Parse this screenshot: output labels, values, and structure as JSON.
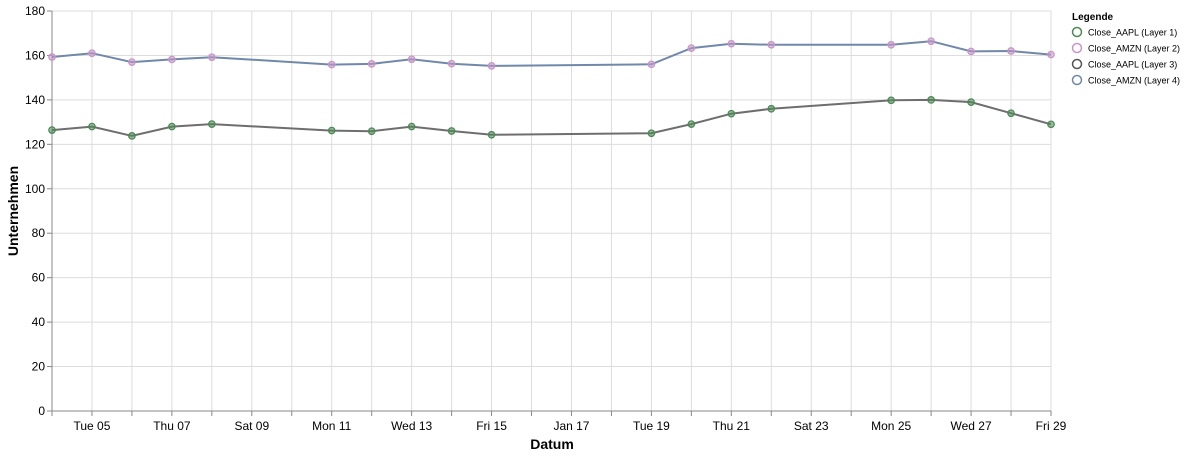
{
  "chart_data": {
    "type": "line",
    "xlabel": "Datum",
    "ylabel": "Unternehmen",
    "ylim": [
      0,
      180
    ],
    "yticks": [
      0,
      20,
      40,
      60,
      80,
      100,
      120,
      140,
      160,
      180
    ],
    "xlim": [
      "2024-01-04",
      "2024-01-29"
    ],
    "xticks": [
      {
        "date": "2024-01-05",
        "label": "Tue 05"
      },
      {
        "date": "2024-01-07",
        "label": "Thu 07"
      },
      {
        "date": "2024-01-09",
        "label": "Sat 09"
      },
      {
        "date": "2024-01-11",
        "label": "Mon 11"
      },
      {
        "date": "2024-01-13",
        "label": "Wed 13"
      },
      {
        "date": "2024-01-15",
        "label": "Fri 15"
      },
      {
        "date": "2024-01-17",
        "label": "Jan 17"
      },
      {
        "date": "2024-01-19",
        "label": "Tue 19"
      },
      {
        "date": "2024-01-21",
        "label": "Thu 21"
      },
      {
        "date": "2024-01-23",
        "label": "Sat 23"
      },
      {
        "date": "2024-01-25",
        "label": "Mon 25"
      },
      {
        "date": "2024-01-27",
        "label": "Wed 27"
      },
      {
        "date": "2024-01-29",
        "label": "Fri 29"
      }
    ],
    "grid": true,
    "legend": {
      "title": "Legende",
      "placement": "right",
      "entries": [
        {
          "label": "Close_AAPL (Layer 1)",
          "color": "#4c8a55"
        },
        {
          "label": "Close_AMZN (Layer 2)",
          "color": "#c896c8"
        },
        {
          "label": "Close_AAPL (Layer 3)",
          "color": "#555555"
        },
        {
          "label": "Close_AMZN (Layer 4)",
          "color": "#7088aa"
        }
      ]
    },
    "x": [
      "2024-01-04",
      "2024-01-05",
      "2024-01-06",
      "2024-01-07",
      "2024-01-08",
      "2024-01-11",
      "2024-01-12",
      "2024-01-13",
      "2024-01-14",
      "2024-01-15",
      "2024-01-19",
      "2024-01-20",
      "2024-01-21",
      "2024-01-22",
      "2024-01-25",
      "2024-01-26",
      "2024-01-27",
      "2024-01-28",
      "2024-01-29"
    ],
    "series": [
      {
        "name": "Close_AAPL (Layer 3)",
        "role": "line",
        "color": "#6e6e6e",
        "values": [
          126.4,
          128.0,
          123.8,
          128.0,
          129.1,
          126.2,
          125.9,
          128.0,
          126.0,
          124.3,
          125.0,
          129.1,
          133.8,
          136.0,
          139.8,
          140.0,
          139.0,
          134.0,
          129.0
        ]
      },
      {
        "name": "Close_AMZN (Layer 4)",
        "role": "line",
        "color": "#7088aa",
        "values": [
          159.3,
          161.0,
          157.0,
          158.2,
          159.2,
          155.9,
          156.2,
          158.3,
          156.3,
          155.3,
          156.0,
          163.3,
          165.3,
          164.8,
          164.8,
          166.4,
          161.8,
          162.0,
          160.4
        ]
      },
      {
        "name": "Close_AAPL (Layer 1)",
        "role": "points",
        "color": "#4c8a55",
        "values": [
          126.4,
          128.0,
          123.8,
          128.0,
          129.1,
          126.2,
          125.9,
          128.0,
          126.0,
          124.3,
          125.0,
          129.1,
          133.8,
          136.0,
          139.8,
          140.0,
          139.0,
          134.0,
          129.0
        ]
      },
      {
        "name": "Close_AMZN (Layer 2)",
        "role": "points",
        "color": "#c896c8",
        "values": [
          159.3,
          161.0,
          157.0,
          158.2,
          159.2,
          155.9,
          156.2,
          158.3,
          156.3,
          155.3,
          156.0,
          163.3,
          165.3,
          164.8,
          164.8,
          166.4,
          161.8,
          162.0,
          160.4
        ]
      }
    ]
  }
}
